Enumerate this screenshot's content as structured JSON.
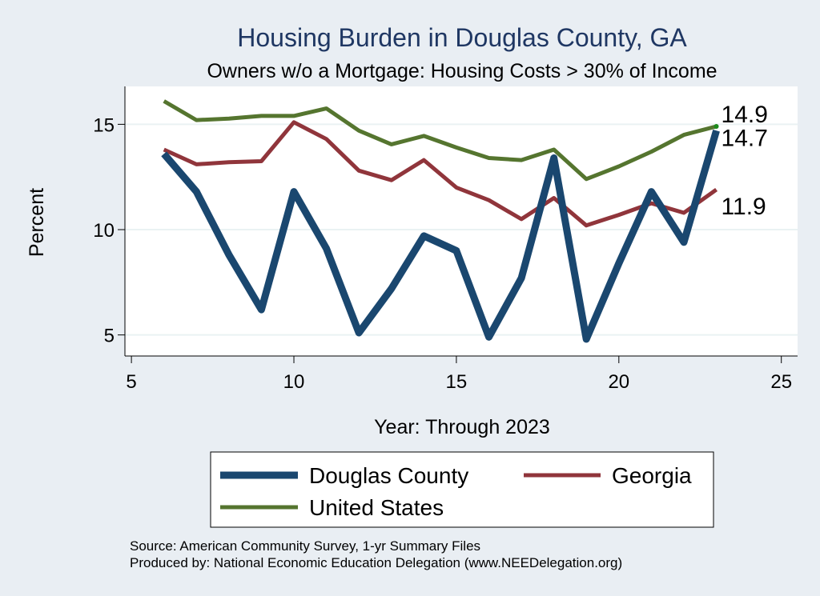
{
  "chart_data": {
    "type": "line",
    "title": "Housing Burden in Douglas County, GA",
    "subtitle": "Owners w/o a Mortgage: Housing Costs > 30% of Income",
    "xlabel": "Year: Through 2023",
    "ylabel": "Percent",
    "xlim": [
      4.8,
      25.5
    ],
    "ylim": [
      4.0,
      16.8
    ],
    "x_ticks": [
      5,
      10,
      15,
      20,
      25
    ],
    "x_tick_labels": [
      "5",
      "10",
      "15",
      "20",
      "25"
    ],
    "y_ticks": [
      5,
      10,
      15
    ],
    "y_tick_labels": [
      "5",
      "10",
      "15"
    ],
    "grid": true,
    "legend_position": "bottom",
    "x": [
      6,
      7,
      8,
      9,
      10,
      11,
      12,
      13,
      14,
      15,
      16,
      17,
      18,
      19,
      20,
      21,
      22,
      23
    ],
    "series": [
      {
        "name": "Douglas County",
        "color": "#1a476f",
        "values": [
          13.6,
          11.8,
          8.8,
          6.2,
          11.8,
          9.1,
          5.1,
          7.2,
          9.7,
          9.0,
          4.9,
          7.7,
          13.4,
          4.8,
          8.4,
          11.8,
          9.4,
          14.7
        ]
      },
      {
        "name": "Georgia",
        "color": "#90353b",
        "values": [
          13.8,
          13.1,
          13.2,
          13.25,
          15.1,
          14.3,
          12.8,
          12.35,
          13.3,
          12.0,
          11.4,
          10.5,
          11.5,
          10.2,
          10.7,
          11.25,
          10.8,
          11.9
        ]
      },
      {
        "name": "United States",
        "color": "#55752f",
        "values": [
          16.1,
          15.2,
          15.27,
          15.4,
          15.4,
          15.75,
          14.7,
          14.05,
          14.45,
          13.9,
          13.4,
          13.3,
          13.8,
          12.4,
          13.0,
          13.7,
          14.5,
          14.9
        ]
      }
    ],
    "end_labels": [
      {
        "series": "United States",
        "text": "14.9"
      },
      {
        "series": "Douglas County",
        "text": "14.7"
      },
      {
        "series": "Georgia",
        "text": "11.9"
      }
    ],
    "legend": [
      "Douglas County",
      "Georgia",
      "United States"
    ],
    "notes": [
      "Source: American Community Survey, 1-yr Summary Files",
      "Produced by: National Economic Education Delegation (www.NEEDelegation.org)"
    ]
  }
}
